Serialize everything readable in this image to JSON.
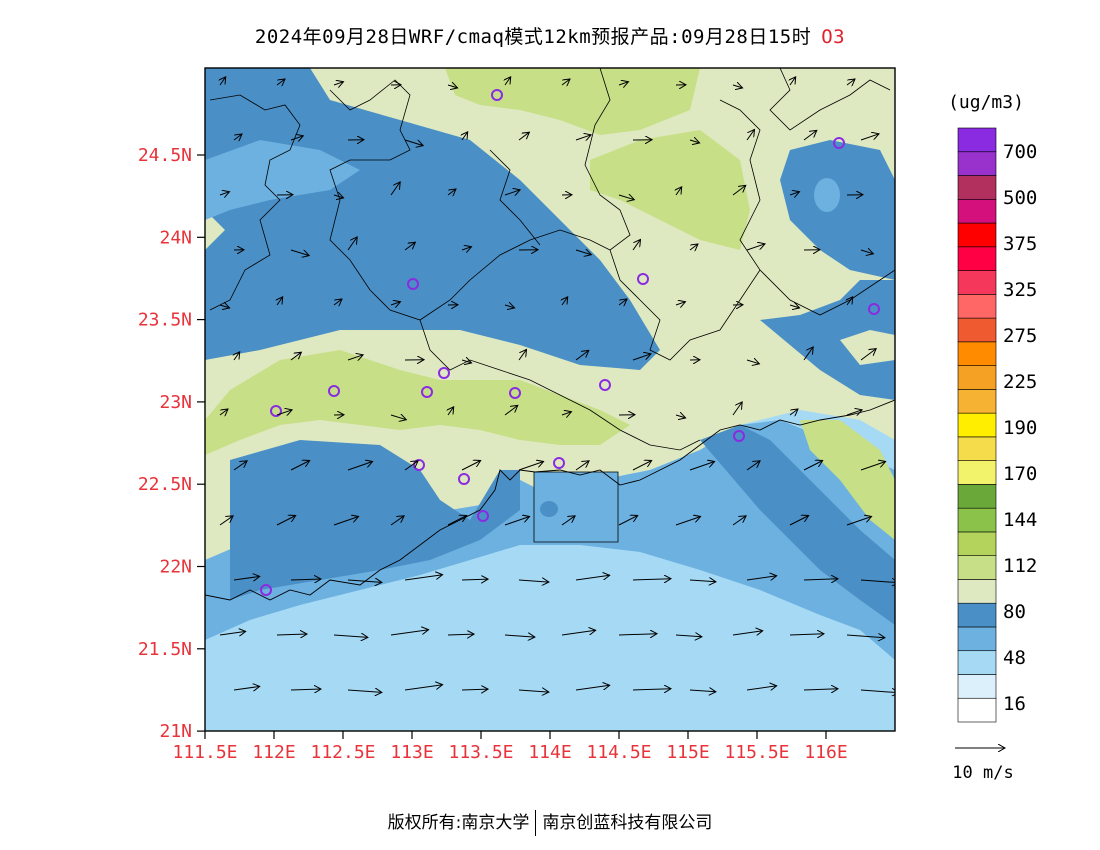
{
  "title": {
    "main": "2024年09月28日WRF/cmaq模式12km预报产品:09月28日15时",
    "species": "O3"
  },
  "axes": {
    "lat_ticks": [
      "24.5N",
      "24N",
      "23.5N",
      "23N",
      "22.5N",
      "22N",
      "21.5N",
      "21N"
    ],
    "lon_ticks": [
      "111.5E",
      "112E",
      "112.5E",
      "113E",
      "113.5E",
      "114E",
      "114.5E",
      "115E",
      "115.5E",
      "116E"
    ],
    "tick_color": "#e8333a"
  },
  "legend": {
    "unit": "(ug/m3)",
    "labels": [
      "700",
      "500",
      "375",
      "325",
      "275",
      "225",
      "190",
      "170",
      "144",
      "112",
      "80",
      "48",
      "16"
    ],
    "colors": [
      "#ffffff",
      "#dcf0fb",
      "#a6daf4",
      "#6cb1e0",
      "#4a8fc6",
      "#dfe9c1",
      "#c7df86",
      "#b3d35c",
      "#8bc34a",
      "#6aa83a",
      "#f2f26b",
      "#f4dc4a",
      "#ffee00",
      "#f6b232",
      "#f5a124",
      "#ff8c00",
      "#ef5a30",
      "#ff6666",
      "#f4375a",
      "#ff0044",
      "#ff0000",
      "#d4107c",
      "#b2305e",
      "#9932cc",
      "#8a2be2"
    ]
  },
  "wind": {
    "reference_label": "10 m/s"
  },
  "footer": {
    "left": "版权所有:南京大学",
    "right": "南京创蓝科技有限公司"
  }
}
